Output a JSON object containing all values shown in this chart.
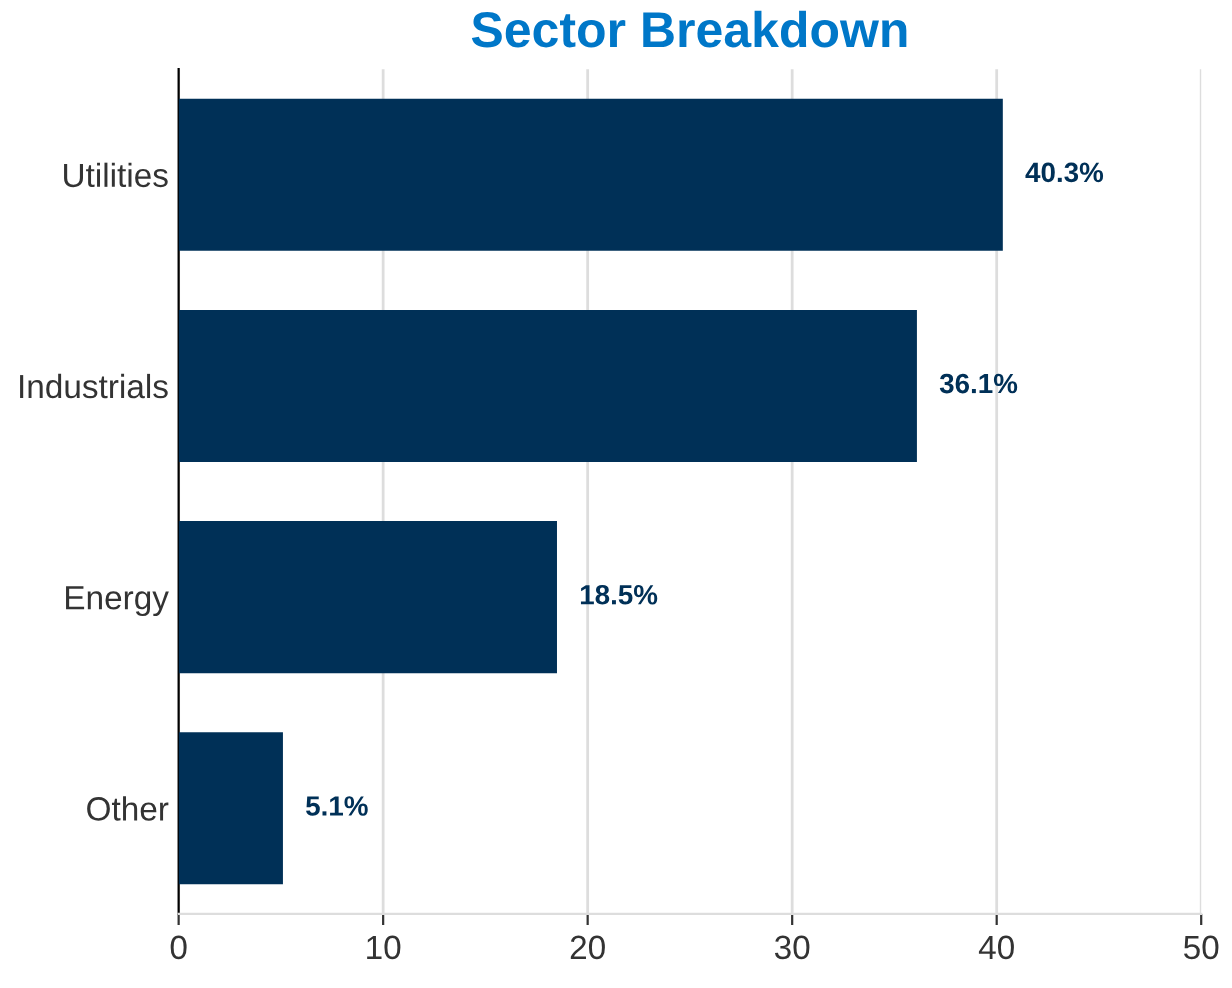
{
  "chart_data": {
    "type": "bar",
    "orientation": "horizontal",
    "title": "Sector Breakdown",
    "categories": [
      "Utilities",
      "Industrials",
      "Energy",
      "Other"
    ],
    "values": [
      40.3,
      36.1,
      18.5,
      5.1
    ],
    "value_labels": [
      "40.3%",
      "36.1%",
      "18.5%",
      "5.1%"
    ],
    "color": "#003057",
    "xlim": [
      0,
      50
    ],
    "xticks": [
      0,
      10,
      20,
      30,
      40,
      50
    ],
    "grid": "x"
  }
}
